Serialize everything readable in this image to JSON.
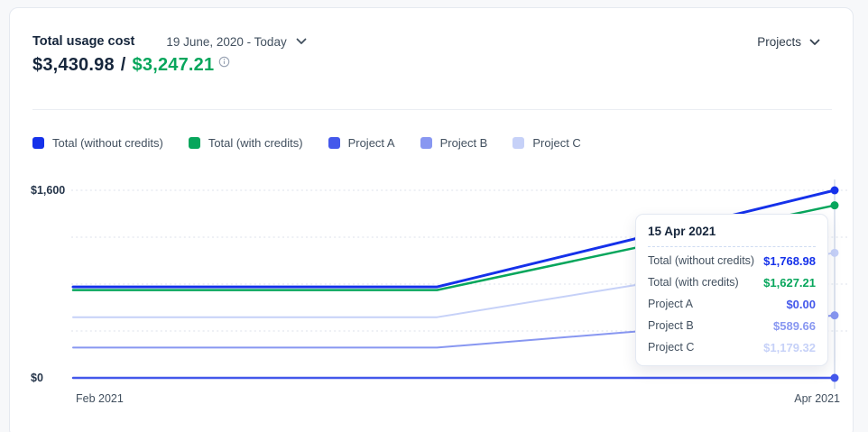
{
  "card": {
    "title": "Total usage cost",
    "date_range": "19 June, 2020 - Today",
    "projects_dropdown_label": "Projects"
  },
  "summary": {
    "total_without_credits": "$3,430.98",
    "separator": "/",
    "total_with_credits": "$3,247.21",
    "without_credits_color": "#16263C",
    "with_credits_color": "#07A65C"
  },
  "legend": [
    {
      "label": "Total (without credits)",
      "color": "#1531EA"
    },
    {
      "label": "Total (with credits)",
      "color": "#07A65C"
    },
    {
      "label": "Project A",
      "color": "#4458EB"
    },
    {
      "label": "Project B",
      "color": "#8897F1"
    },
    {
      "label": "Project C",
      "color": "#C6D1F8"
    }
  ],
  "chart_data": {
    "type": "line",
    "title": "Total usage cost over time",
    "x_axis": {
      "ticks": [
        "Feb 2021",
        "Apr 2021"
      ]
    },
    "y_axis": {
      "ticks": [
        "$0",
        "$1,600"
      ],
      "min": 0,
      "labeled_max": 1600
    },
    "grid": "dotted horizontal gridlines, 4 levels above baseline",
    "hover_x_label": "15 Apr 2021",
    "series": [
      {
        "name": "Total (without credits)",
        "color": "#1531EA",
        "stroke_width": 3,
        "points": [
          [
            0,
            858
          ],
          [
            0.478,
            858
          ],
          [
            1,
            1768.98
          ]
        ]
      },
      {
        "name": "Total (with credits)",
        "color": "#07A65C",
        "stroke_width": 2.5,
        "points": [
          [
            0,
            828
          ],
          [
            0.478,
            828
          ],
          [
            1,
            1627.21
          ]
        ]
      },
      {
        "name": "Project A",
        "color": "#4458EB",
        "stroke_width": 2.5,
        "points": [
          [
            0,
            0
          ],
          [
            1,
            0
          ]
        ]
      },
      {
        "name": "Project B",
        "color": "#8897F1",
        "stroke_width": 2,
        "points": [
          [
            0,
            286
          ],
          [
            0.478,
            286
          ],
          [
            1,
            589.66
          ]
        ]
      },
      {
        "name": "Project C",
        "color": "#C6D1F8",
        "stroke_width": 2,
        "points": [
          [
            0,
            572
          ],
          [
            0.478,
            572
          ],
          [
            1,
            1179.32
          ]
        ]
      }
    ]
  },
  "tooltip": {
    "title": "15 Apr 2021",
    "rows": [
      {
        "label": "Total (without credits)",
        "value": "$1,768.98",
        "color": "#1531EA"
      },
      {
        "label": "Total (with credits)",
        "value": "$1,627.21",
        "color": "#07A65C"
      },
      {
        "label": "Project A",
        "value": "$0.00",
        "color": "#4458EB"
      },
      {
        "label": "Project B",
        "value": "$589.66",
        "color": "#8897F1"
      },
      {
        "label": "Project C",
        "value": "$1,179.32",
        "color": "#C6D1F8"
      }
    ]
  }
}
